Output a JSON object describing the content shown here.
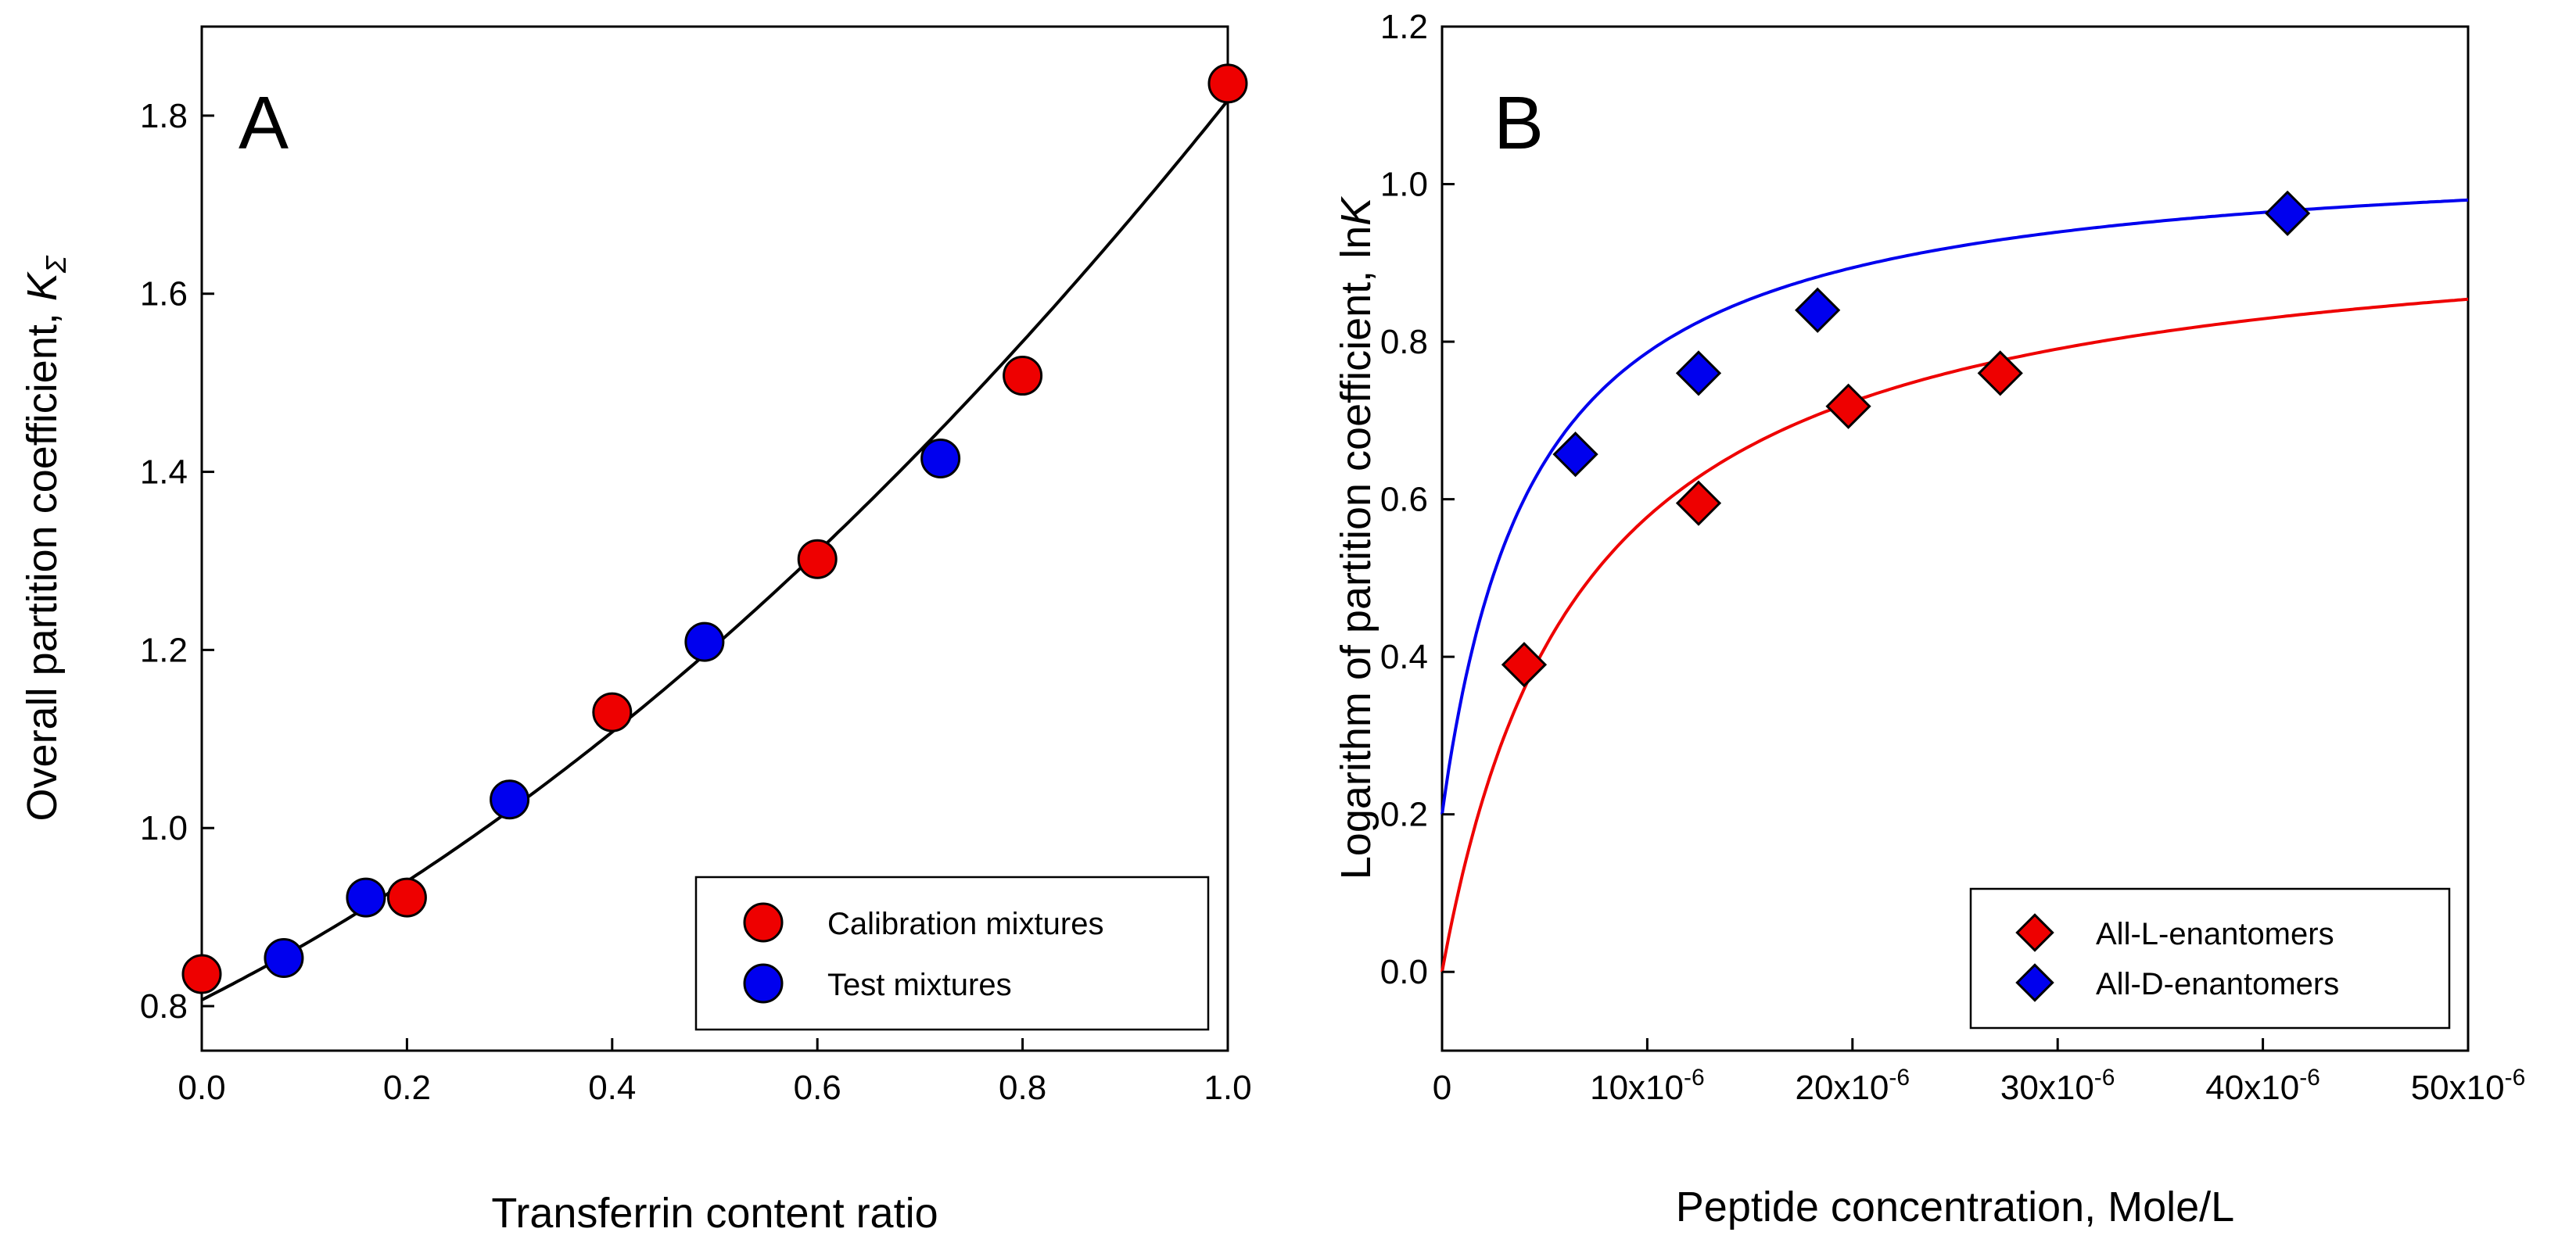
{
  "chart_data": [
    {
      "id": "A",
      "type": "scatter",
      "panel_label": "A",
      "xlabel": "Transferrin content ratio",
      "ylabel": "Overall partition coefficient, ",
      "ylabel_symbol": "K",
      "ylabel_subscript": "Σ",
      "xlim": [
        0.0,
        1.0
      ],
      "ylim": [
        0.75,
        1.9
      ],
      "xticks": [
        0.0,
        0.2,
        0.4,
        0.6,
        0.8,
        1.0
      ],
      "xtick_labels": [
        "0.0",
        "0.2",
        "0.4",
        "0.6",
        "0.8",
        "1.0"
      ],
      "yticks": [
        0.8,
        1.0,
        1.2,
        1.4,
        1.6,
        1.8
      ],
      "ytick_labels": [
        "0.8",
        "1.0",
        "1.2",
        "1.4",
        "1.6",
        "1.8"
      ],
      "grid": false,
      "legend_position": "bottom-right",
      "series": [
        {
          "name": "Calibration mixtures",
          "color": "#ee0000",
          "marker": "circle",
          "points": [
            [
              0.0,
              0.836
            ],
            [
              0.2,
              0.922
            ],
            [
              0.4,
              1.13
            ],
            [
              0.6,
              1.302
            ],
            [
              0.8,
              1.508
            ],
            [
              1.0,
              1.836
            ]
          ]
        },
        {
          "name": "Test mixtures",
          "color": "#0000ee",
          "marker": "circle",
          "points": [
            [
              0.08,
              0.854
            ],
            [
              0.16,
              0.922
            ],
            [
              0.3,
              1.032
            ],
            [
              0.49,
              1.209
            ],
            [
              0.72,
              1.415
            ]
          ]
        }
      ],
      "fit": {
        "type": "curve",
        "color": "#000000",
        "x_range": [
          0.0,
          1.0
        ],
        "coefficients": [
          0.807,
          0.58,
          0.43
        ]
      }
    },
    {
      "id": "B",
      "type": "scatter",
      "panel_label": "B",
      "xlabel": "Peptide concentration, Mole/L",
      "ylabel": "Logarithm of partition coefficient, ln",
      "ylabel_symbol": "K",
      "xlim": [
        0,
        5e-05
      ],
      "ylim": [
        -0.1,
        1.2
      ],
      "xticks": [
        0,
        1e-05,
        2e-05,
        3e-05,
        4e-05,
        5e-05
      ],
      "xtick_labels": [
        "0",
        "10x10",
        "20x10",
        "30x10",
        "40x10",
        "50x10"
      ],
      "xtick_exponent": "-6",
      "yticks": [
        0.0,
        0.2,
        0.4,
        0.6,
        0.8,
        1.0,
        1.2
      ],
      "ytick_labels": [
        "0.0",
        "0.2",
        "0.4",
        "0.6",
        "0.8",
        "1.0",
        "1.2"
      ],
      "grid": false,
      "legend_position": "bottom-right",
      "series": [
        {
          "name": "All-L-enantomers",
          "color": "#ee0000",
          "marker": "diamond",
          "points": [
            [
              4e-06,
              0.39
            ],
            [
              1.25e-05,
              0.595
            ],
            [
              1.98e-05,
              0.718
            ],
            [
              2.72e-05,
              0.76
            ]
          ],
          "fit": {
            "type": "hyperbolic",
            "y0": 0.0,
            "a": 0.97,
            "b": 6.8e-06,
            "color": "#ee0000"
          }
        },
        {
          "name": "All-D-enantomers",
          "color": "#0000ee",
          "marker": "diamond",
          "points": [
            [
              6.5e-06,
              0.657
            ],
            [
              1.25e-05,
              0.76
            ],
            [
              1.83e-05,
              0.84
            ],
            [
              4.12e-05,
              0.963
            ]
          ],
          "fit": {
            "type": "hyperbolic",
            "y0": 0.2,
            "a": 0.85,
            "b": 4.5e-06,
            "color": "#0000ee"
          }
        }
      ]
    }
  ]
}
